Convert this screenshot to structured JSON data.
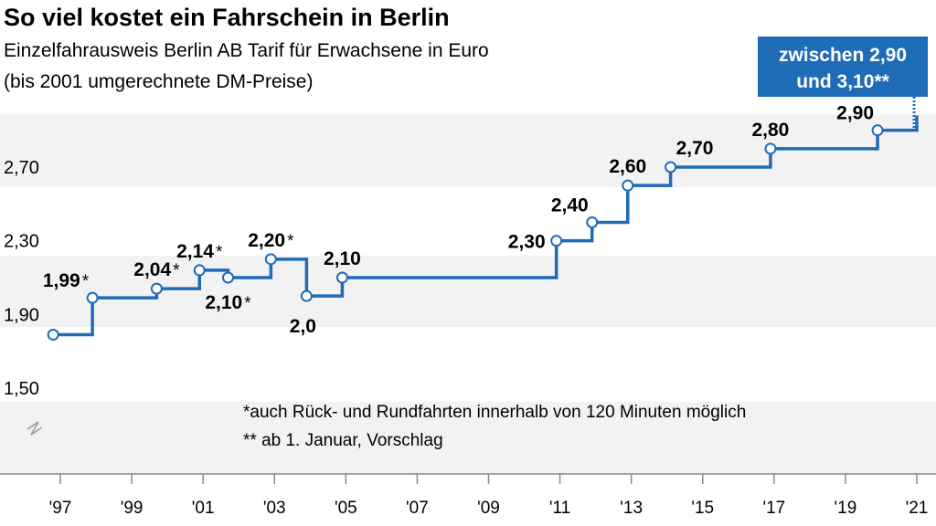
{
  "title": "So viel kostet ein Fahrschein in Berlin",
  "subtitle_line1": "Einzelfahrausweis Berlin AB Tarif für Erwachsene in Euro",
  "subtitle_line2": "(bis 2001 umgerechnete DM-Preise)",
  "callout_line1": "zwischen 2,90",
  "callout_line2": "und 3,10**",
  "footnote1": "*auch Rück- und Rundfahrten innerhalb von 120 Minuten möglich",
  "footnote2": "** ab 1. Januar, Vorschlag",
  "colors": {
    "line": "#1e6bb8",
    "callout_bg": "#1e6bb8",
    "band": "#f2f2f2",
    "axis": "#888888"
  },
  "chart_data": {
    "type": "line",
    "step": true,
    "title": "So viel kostet ein Fahrschein in Berlin",
    "ylim": [
      1.5,
      2.9
    ],
    "xlim": [
      1996.5,
      2021.3
    ],
    "yticks": [
      {
        "v": 1.5,
        "label": "1,50"
      },
      {
        "v": 1.9,
        "label": "1,90"
      },
      {
        "v": 2.3,
        "label": "2,30"
      },
      {
        "v": 2.7,
        "label": "2,70"
      }
    ],
    "xticks": [
      {
        "v": 1997,
        "label": "'97"
      },
      {
        "v": 1999,
        "label": "'99"
      },
      {
        "v": 2001,
        "label": "'01"
      },
      {
        "v": 2003,
        "label": "'03"
      },
      {
        "v": 2005,
        "label": "'05"
      },
      {
        "v": 2007,
        "label": "'07"
      },
      {
        "v": 2009,
        "label": "'09"
      },
      {
        "v": 2011,
        "label": "'11"
      },
      {
        "v": 2013,
        "label": "'13"
      },
      {
        "v": 2015,
        "label": "'15"
      },
      {
        "v": 2017,
        "label": "'17"
      },
      {
        "v": 2019,
        "label": "'19"
      },
      {
        "v": 2021,
        "label": "'21"
      }
    ],
    "points": [
      {
        "x": 1996.8,
        "y": 1.79,
        "label": "",
        "star": ""
      },
      {
        "x": 1997.9,
        "y": 1.99,
        "label": "1,99",
        "star": "*",
        "pos": "above-left"
      },
      {
        "x": 1999.7,
        "y": 2.04,
        "label": "2,04",
        "star": "*",
        "pos": "above"
      },
      {
        "x": 2000.9,
        "y": 2.14,
        "label": "2,14",
        "star": "*",
        "pos": "above"
      },
      {
        "x": 2001.7,
        "y": 2.1,
        "label": "2,10",
        "star": "*",
        "pos": "below"
      },
      {
        "x": 2002.9,
        "y": 2.2,
        "label": "2,20",
        "star": "*",
        "pos": "above"
      },
      {
        "x": 2003.9,
        "y": 2.0,
        "label": "2,0",
        "star": "",
        "pos": "below-left"
      },
      {
        "x": 2004.9,
        "y": 2.1,
        "label": "2,10",
        "star": "",
        "pos": "above"
      },
      {
        "x": 2010.9,
        "y": 2.3,
        "label": "2,30",
        "star": "",
        "pos": "left"
      },
      {
        "x": 2011.9,
        "y": 2.4,
        "label": "2,40",
        "star": "",
        "pos": "above-left"
      },
      {
        "x": 2012.9,
        "y": 2.6,
        "label": "2,60",
        "star": "",
        "pos": "above"
      },
      {
        "x": 2014.1,
        "y": 2.7,
        "label": "2,70",
        "star": "",
        "pos": "above-right"
      },
      {
        "x": 2016.9,
        "y": 2.8,
        "label": "2,80",
        "star": "",
        "pos": "above"
      },
      {
        "x": 2019.9,
        "y": 2.9,
        "label": "2,90",
        "star": "",
        "pos": "above-left"
      }
    ],
    "end": {
      "x": 2021.0,
      "y": 2.98
    }
  }
}
